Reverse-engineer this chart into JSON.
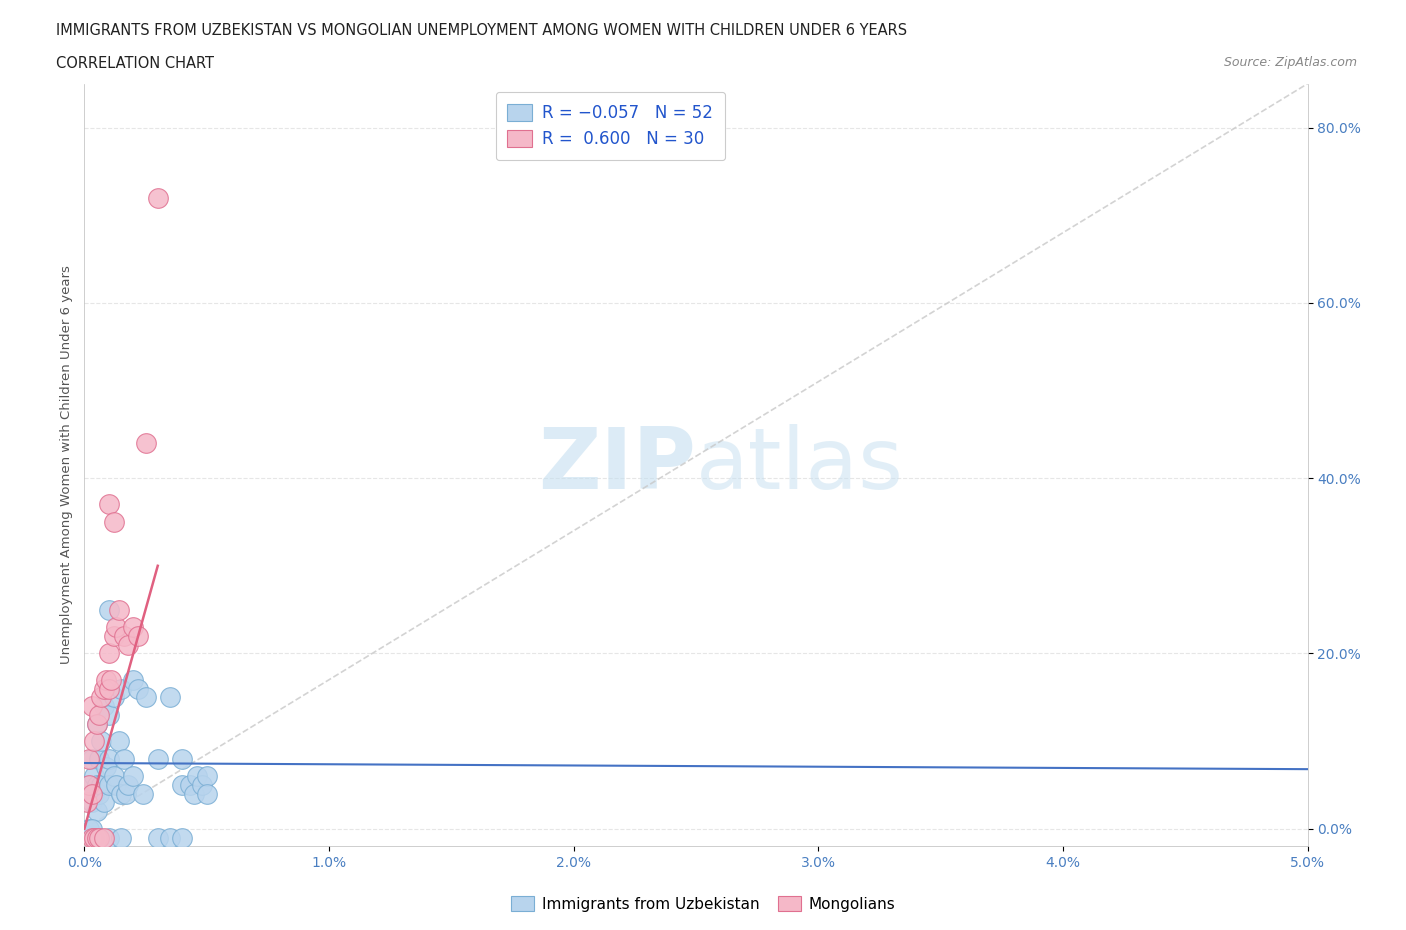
{
  "title_line1": "IMMIGRANTS FROM UZBEKISTAN VS MONGOLIAN UNEMPLOYMENT AMONG WOMEN WITH CHILDREN UNDER 6 YEARS",
  "title_line2": "CORRELATION CHART",
  "source_text": "Source: ZipAtlas.com",
  "ylabel": "Unemployment Among Women with Children Under 6 years",
  "xlim": [
    0.0,
    0.05
  ],
  "ylim": [
    -0.02,
    0.85
  ],
  "xticks": [
    0.0,
    0.01,
    0.02,
    0.03,
    0.04,
    0.05
  ],
  "xticklabels": [
    "0.0%",
    "1.0%",
    "2.0%",
    "3.0%",
    "4.0%",
    "5.0%"
  ],
  "yticks": [
    0.0,
    0.2,
    0.4,
    0.6,
    0.8
  ],
  "yticklabels": [
    "0.0%",
    "20.0%",
    "40.0%",
    "60.0%",
    "80.0%"
  ],
  "color_uzbek_fill": "#b8d4ed",
  "color_uzbek_edge": "#7aaed4",
  "color_mongol_fill": "#f5b8c8",
  "color_mongol_edge": "#e07090",
  "color_line_uzbek": "#4472c4",
  "color_line_mongol": "#e06080",
  "color_diagonal": "#c8c8c8",
  "color_grid": "#e0e0e0",
  "uzbek_x": [
    0.0002,
    0.0003,
    0.0003,
    0.0004,
    0.0004,
    0.0005,
    0.0005,
    0.0005,
    0.0006,
    0.0006,
    0.0007,
    0.0007,
    0.0008,
    0.0008,
    0.0009,
    0.001,
    0.001,
    0.001,
    0.001,
    0.0012,
    0.0012,
    0.0013,
    0.0014,
    0.0015,
    0.0015,
    0.0016,
    0.0017,
    0.0018,
    0.002,
    0.002,
    0.0022,
    0.0024,
    0.0025,
    0.003,
    0.0035,
    0.004,
    0.004,
    0.0043,
    0.0045,
    0.0046,
    0.0048,
    0.005,
    0.005,
    0.0002,
    0.0003,
    0.0004,
    0.0005,
    0.0006,
    0.001,
    0.0015,
    0.003,
    0.0035,
    0.004
  ],
  "uzbek_y": [
    0.05,
    0.03,
    0.08,
    0.04,
    0.06,
    0.02,
    0.05,
    0.12,
    0.04,
    0.08,
    0.05,
    0.1,
    0.03,
    0.14,
    0.07,
    0.05,
    0.13,
    0.25,
    0.08,
    0.06,
    0.15,
    0.05,
    0.1,
    0.04,
    0.16,
    0.08,
    0.04,
    0.05,
    0.17,
    0.06,
    0.16,
    0.04,
    0.15,
    0.08,
    0.15,
    0.08,
    0.05,
    0.05,
    0.04,
    0.06,
    0.05,
    0.06,
    0.04,
    0.0,
    0.0,
    -0.01,
    -0.01,
    -0.01,
    -0.01,
    -0.01,
    -0.01,
    -0.01,
    -0.01
  ],
  "mongol_x": [
    0.0001,
    0.0002,
    0.0002,
    0.0003,
    0.0003,
    0.0004,
    0.0005,
    0.0006,
    0.0007,
    0.0008,
    0.0009,
    0.001,
    0.001,
    0.0011,
    0.0012,
    0.0013,
    0.0014,
    0.0016,
    0.0018,
    0.002,
    0.0022,
    0.0025,
    0.003,
    0.0003,
    0.0004,
    0.0005,
    0.0006,
    0.0008,
    0.001,
    0.0012
  ],
  "mongol_y": [
    0.03,
    0.05,
    0.08,
    0.04,
    0.14,
    0.1,
    0.12,
    0.13,
    0.15,
    0.16,
    0.17,
    0.16,
    0.2,
    0.17,
    0.22,
    0.23,
    0.25,
    0.22,
    0.21,
    0.23,
    0.22,
    0.44,
    0.72,
    -0.01,
    -0.01,
    -0.01,
    -0.01,
    -0.01,
    0.37,
    0.35
  ],
  "trend_uzbek_x0": 0.0,
  "trend_uzbek_x1": 0.05,
  "trend_uzbek_y0": 0.075,
  "trend_uzbek_y1": 0.068,
  "trend_mongol_x0": 0.0,
  "trend_mongol_x1": 0.003,
  "trend_mongol_y0": 0.0,
  "trend_mongol_y1": 0.3
}
